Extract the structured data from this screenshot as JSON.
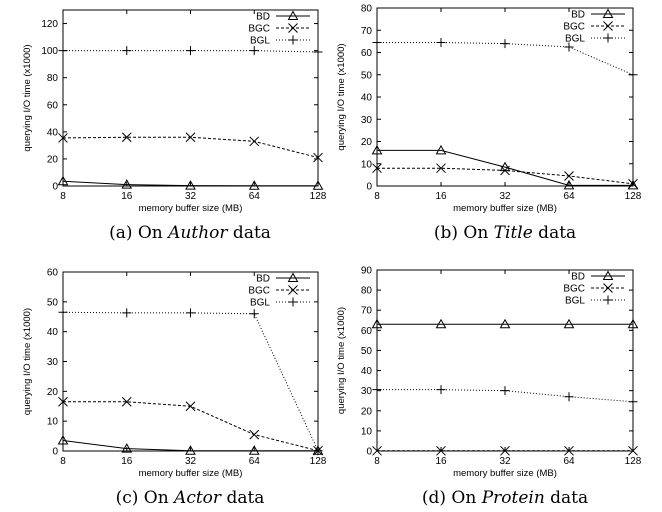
{
  "chart_data": [
    {
      "type": "line",
      "caption": {
        "prefix": "(a) On ",
        "italic": "Author",
        "suffix": " data"
      },
      "xlabel": "memory buffer size (MB)",
      "ylabel": "querying I/O time (x1000)",
      "categories": [
        "8",
        "16",
        "32",
        "64",
        "128"
      ],
      "ylim": [
        0,
        130
      ],
      "yticks": [
        0,
        20,
        40,
        60,
        80,
        100,
        120
      ],
      "legend_position": "top-right",
      "series": [
        {
          "name": "BD",
          "values": [
            3.5,
            1,
            0.3,
            0.2,
            0.2
          ]
        },
        {
          "name": "BGC",
          "values": [
            35.5,
            36,
            36,
            33,
            21
          ]
        },
        {
          "name": "BGL",
          "values": [
            100,
            100,
            100,
            100,
            99
          ]
        }
      ]
    },
    {
      "type": "line",
      "caption": {
        "prefix": "(b) On ",
        "italic": "Title",
        "suffix": " data"
      },
      "xlabel": "memory buffer size (MB)",
      "ylabel": "querying I/O time (x1000)",
      "categories": [
        "8",
        "16",
        "32",
        "64",
        "128"
      ],
      "ylim": [
        0,
        80
      ],
      "yticks": [
        0,
        10,
        20,
        30,
        40,
        50,
        60,
        70,
        80
      ],
      "legend_position": "top-right",
      "series": [
        {
          "name": "BD",
          "values": [
            16,
            16,
            8.5,
            0.3,
            0.3
          ]
        },
        {
          "name": "BGC",
          "values": [
            8,
            8,
            7,
            4.5,
            1
          ]
        },
        {
          "name": "BGL",
          "values": [
            64.5,
            64.5,
            64,
            62.5,
            50
          ]
        }
      ]
    },
    {
      "type": "line",
      "caption": {
        "prefix": "(c) On ",
        "italic": "Actor",
        "suffix": " data"
      },
      "xlabel": "memory buffer size (MB)",
      "ylabel": "querying I/O time (x1000)",
      "categories": [
        "8",
        "16",
        "32",
        "64",
        "128"
      ],
      "ylim": [
        0,
        60
      ],
      "yticks": [
        0,
        10,
        20,
        30,
        40,
        50,
        60
      ],
      "legend_position": "top-right",
      "series": [
        {
          "name": "BD",
          "values": [
            3.5,
            0.8,
            0.1,
            0.1,
            0.1
          ]
        },
        {
          "name": "BGC",
          "values": [
            16.5,
            16.5,
            15,
            5.5,
            0.1
          ]
        },
        {
          "name": "BGL",
          "values": [
            46.5,
            46.3,
            46.3,
            46,
            0.1
          ]
        }
      ]
    },
    {
      "type": "line",
      "caption": {
        "prefix": "(d) On ",
        "italic": "Protein",
        "suffix": " data"
      },
      "xlabel": "memory buffer size (MB)",
      "ylabel": "querying I/O time (x1000)",
      "categories": [
        "8",
        "16",
        "32",
        "64",
        "128"
      ],
      "ylim": [
        0,
        90
      ],
      "yticks": [
        0,
        10,
        20,
        30,
        40,
        50,
        60,
        70,
        80,
        90
      ],
      "legend_position": "top-right",
      "series": [
        {
          "name": "BD",
          "values": [
            63,
            63,
            63,
            63,
            63
          ]
        },
        {
          "name": "BGC",
          "values": [
            0.1,
            0.1,
            0.1,
            0.1,
            0.1
          ]
        },
        {
          "name": "BGL",
          "values": [
            30.5,
            30.5,
            30,
            27,
            24.5
          ]
        }
      ]
    }
  ]
}
